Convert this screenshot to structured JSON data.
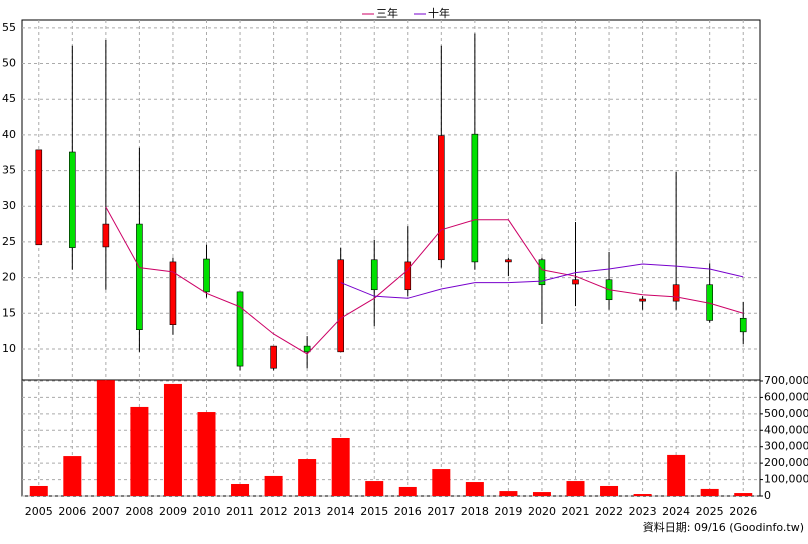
{
  "chart_data": [
    {
      "type": "candlestick",
      "categories": [
        "2005",
        "2006",
        "2007",
        "2008",
        "2009",
        "2010",
        "2011",
        "2012",
        "2013",
        "2014",
        "2015",
        "2016",
        "2017",
        "2018",
        "2019",
        "2020",
        "2021",
        "2022",
        "2023",
        "2024",
        "2025",
        "2026"
      ],
      "open": [
        24.6,
        37.6,
        24.3,
        27.5,
        13.4,
        22.6,
        18.0,
        7.3,
        10.4,
        9.6,
        22.5,
        18.3,
        22.5,
        40.1,
        22.2,
        22.5,
        19.1,
        19.7,
        16.7,
        16.7,
        19.0,
        14.3
      ],
      "close": [
        37.9,
        24.2,
        27.5,
        12.7,
        22.2,
        18.0,
        7.6,
        10.4,
        9.6,
        22.5,
        18.3,
        22.2,
        39.9,
        22.2,
        22.5,
        19.0,
        19.7,
        16.9,
        17.0,
        19.0,
        14.0,
        12.4
      ],
      "high": [
        37.9,
        52.5,
        53.3,
        38.2,
        22.8,
        24.6,
        18.0,
        10.4,
        11.8,
        24.2,
        25.3,
        27.2,
        52.5,
        54.2,
        22.8,
        22.8,
        27.8,
        23.6,
        17.4,
        34.8,
        22.0,
        16.6
      ],
      "low": [
        24.6,
        21.1,
        18.3,
        9.6,
        12.0,
        17.2,
        7.0,
        7.0,
        7.3,
        9.6,
        13.2,
        17.4,
        21.4,
        21.1,
        20.2,
        13.5,
        16.0,
        15.5,
        15.5,
        15.5,
        13.7,
        10.7
      ],
      "up_color": "#ff0000",
      "down_color": "#00e000",
      "series": [
        {
          "name": "三年",
          "color": "#cc0066",
          "values": [
            null,
            null,
            29.9,
            21.4,
            20.8,
            17.8,
            15.9,
            12.1,
            9.3,
            14.3,
            17.1,
            21.1,
            26.7,
            28.1,
            28.1,
            21.1,
            20.2,
            18.3,
            17.6,
            17.3,
            16.4,
            15.0
          ]
        },
        {
          "name": "十年",
          "color": "#7700cc",
          "values": [
            null,
            null,
            null,
            null,
            null,
            null,
            null,
            null,
            null,
            19.3,
            17.4,
            17.1,
            18.4,
            19.3,
            19.3,
            19.5,
            20.7,
            21.2,
            21.9,
            21.6,
            21.2,
            20.1
          ]
        }
      ],
      "ylim": [
        5.65,
        56.1
      ],
      "yticks": [
        10,
        15,
        20,
        25,
        30,
        35,
        40,
        45,
        50,
        55
      ],
      "grid": true
    },
    {
      "type": "bar",
      "color": "#ff0000",
      "values": [
        61000,
        243000,
        705000,
        542000,
        682000,
        511000,
        73000,
        122000,
        225000,
        353000,
        91000,
        55000,
        164000,
        85000,
        30000,
        24000,
        91000,
        61000,
        12000,
        250000,
        43000,
        18000
      ],
      "ylim": [
        0,
        706000
      ],
      "yticks": [
        0,
        {
          "value": 100000,
          "label": "100,000"
        },
        {
          "value": 200000,
          "label": "200,000"
        },
        {
          "value": 300000,
          "label": "300,000"
        },
        {
          "value": 400000,
          "label": "400,000"
        },
        {
          "value": 500000,
          "label": "500,000"
        },
        {
          "value": 600000,
          "label": "600,000"
        },
        {
          "value": 700000,
          "label": "700,000"
        }
      ],
      "grid": true
    }
  ],
  "footer": "資料日期: 09/16 (Goodinfo.tw)"
}
